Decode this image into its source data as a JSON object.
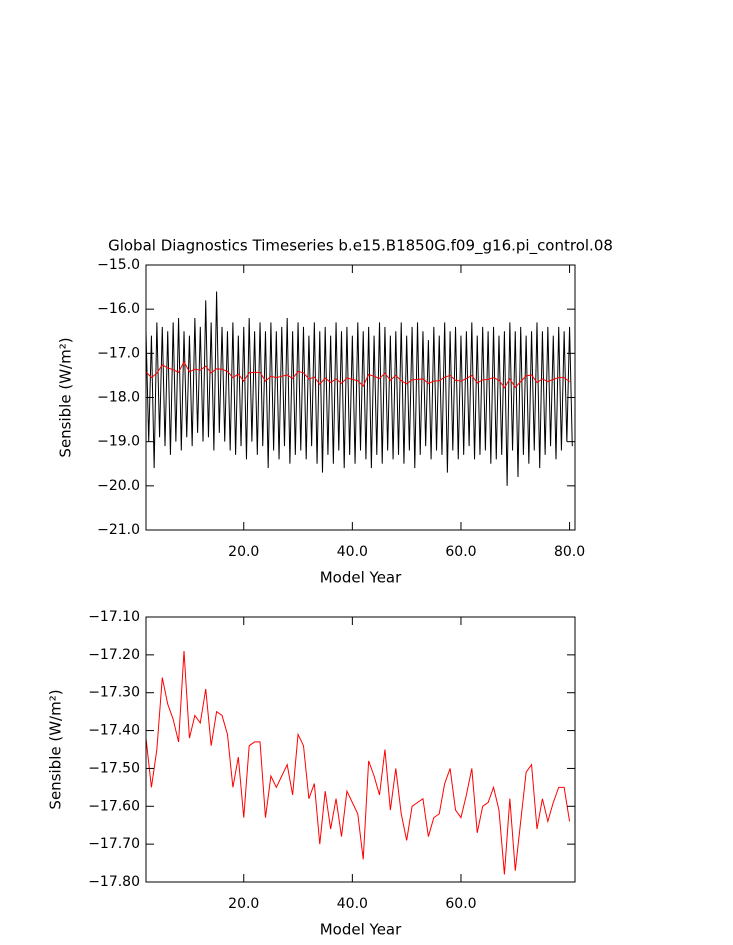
{
  "chart_data": [
    {
      "type": "line",
      "title": "Global Diagnostics Timeseries b.e15.B1850G.f09_g16.pi_control.08",
      "xlabel": "Model Year",
      "ylabel": "Sensible (W/m²)",
      "xlim": [
        2,
        81
      ],
      "ylim": [
        -21,
        -15
      ],
      "xticks": [
        {
          "value": 20,
          "label": "20.0"
        },
        {
          "value": 40,
          "label": "40.0"
        },
        {
          "value": 60,
          "label": "60.0"
        },
        {
          "value": 80,
          "label": "80.0"
        }
      ],
      "yticks": [
        {
          "value": -21,
          "label": "−21.0"
        },
        {
          "value": -20,
          "label": "−20.0"
        },
        {
          "value": -19,
          "label": "−19.0"
        },
        {
          "value": -18,
          "label": "−18.0"
        },
        {
          "value": -17,
          "label": "−17.0"
        },
        {
          "value": -16,
          "label": "−16.0"
        },
        {
          "value": -15,
          "label": "−15.0"
        }
      ],
      "series": [
        {
          "color": "#000000",
          "x": [
            2,
            2.5,
            3,
            3.5,
            4,
            4.5,
            5,
            5.5,
            6,
            6.5,
            7,
            7.5,
            8,
            8.5,
            9,
            9.5,
            10,
            10.5,
            11,
            11.5,
            12,
            12.5,
            13,
            13.5,
            14,
            14.5,
            15,
            15.5,
            16,
            16.5,
            17,
            17.5,
            18,
            18.5,
            19,
            19.5,
            20,
            20.5,
            21,
            21.5,
            22,
            22.5,
            23,
            23.5,
            24,
            24.5,
            25,
            25.5,
            26,
            26.5,
            27,
            27.5,
            28,
            28.5,
            29,
            29.5,
            30,
            30.5,
            31,
            31.5,
            32,
            32.5,
            33,
            33.5,
            34,
            34.5,
            35,
            35.5,
            36,
            36.5,
            37,
            37.5,
            38,
            38.5,
            39,
            39.5,
            40,
            40.5,
            41,
            41.5,
            42,
            42.5,
            43,
            43.5,
            44,
            44.5,
            45,
            45.5,
            46,
            46.5,
            47,
            47.5,
            48,
            48.5,
            49,
            49.5,
            50,
            50.5,
            51,
            51.5,
            52,
            52.5,
            53,
            53.5,
            54,
            54.5,
            55,
            55.5,
            56,
            56.5,
            57,
            57.5,
            58,
            58.5,
            59,
            59.5,
            60,
            60.5,
            61,
            61.5,
            62,
            62.5,
            63,
            63.5,
            64,
            64.5,
            65,
            65.5,
            66,
            66.5,
            67,
            67.5,
            68,
            68.5,
            69,
            69.5,
            70,
            70.5,
            71,
            71.5,
            72,
            72.5,
            73,
            73.5,
            74,
            74.5,
            75,
            75.5,
            76,
            76.5,
            77,
            77.5,
            78,
            78.5,
            79,
            79.5,
            80,
            80.5
          ],
          "values": [
            -16.5,
            -19.0,
            -16.6,
            -19.6,
            -16.3,
            -18.9,
            -16.4,
            -19.1,
            -16.5,
            -19.3,
            -16.3,
            -19.0,
            -16.2,
            -19.2,
            -16.5,
            -18.9,
            -16.6,
            -19.1,
            -16.2,
            -18.8,
            -16.4,
            -19.0,
            -15.8,
            -18.9,
            -16.3,
            -19.2,
            -15.6,
            -18.8,
            -16.4,
            -19.0,
            -16.5,
            -19.2,
            -16.3,
            -19.3,
            -16.6,
            -19.1,
            -16.4,
            -19.4,
            -16.2,
            -19.0,
            -16.5,
            -19.3,
            -16.3,
            -19.1,
            -16.5,
            -19.6,
            -16.3,
            -19.2,
            -16.5,
            -19.4,
            -16.4,
            -19.1,
            -16.2,
            -19.5,
            -16.5,
            -19.3,
            -16.3,
            -19.2,
            -16.4,
            -19.4,
            -16.6,
            -19.1,
            -16.3,
            -19.5,
            -16.5,
            -19.7,
            -16.4,
            -19.3,
            -16.6,
            -19.5,
            -16.3,
            -19.2,
            -16.5,
            -19.6,
            -16.4,
            -19.3,
            -16.6,
            -19.5,
            -16.3,
            -19.2,
            -16.5,
            -19.4,
            -16.4,
            -19.6,
            -16.6,
            -19.3,
            -16.3,
            -19.5,
            -16.4,
            -19.2,
            -16.6,
            -19.4,
            -16.5,
            -19.3,
            -16.3,
            -19.5,
            -16.6,
            -19.2,
            -16.4,
            -19.6,
            -16.3,
            -19.3,
            -16.5,
            -19.1,
            -16.7,
            -19.4,
            -16.4,
            -19.2,
            -16.6,
            -19.3,
            -16.3,
            -19.7,
            -16.5,
            -19.2,
            -16.4,
            -19.4,
            -16.6,
            -19.3,
            -16.5,
            -19.1,
            -16.3,
            -19.4,
            -16.6,
            -19.3,
            -16.4,
            -19.2,
            -16.5,
            -19.5,
            -16.4,
            -19.4,
            -16.6,
            -19.3,
            -16.5,
            -20.0,
            -16.3,
            -19.2,
            -16.5,
            -19.8,
            -16.4,
            -19.3,
            -16.6,
            -19.5,
            -16.5,
            -19.2,
            -16.3,
            -19.6,
            -16.5,
            -19.3,
            -16.4,
            -19.1,
            -16.6,
            -19.4,
            -16.4,
            -19.2,
            -16.5,
            -19.0,
            -16.4,
            -19.1
          ]
        },
        {
          "color": "#ff0000",
          "x": [
            2,
            3,
            4,
            5,
            6,
            7,
            8,
            9,
            10,
            11,
            12,
            13,
            14,
            15,
            16,
            17,
            18,
            19,
            20,
            21,
            22,
            23,
            24,
            25,
            26,
            27,
            28,
            29,
            30,
            31,
            32,
            33,
            34,
            35,
            36,
            37,
            38,
            39,
            40,
            41,
            42,
            43,
            44,
            45,
            46,
            47,
            48,
            49,
            50,
            51,
            52,
            53,
            54,
            55,
            56,
            57,
            58,
            59,
            60,
            61,
            62,
            63,
            64,
            65,
            66,
            67,
            68,
            69,
            70,
            71,
            72,
            73,
            74,
            75,
            76,
            77,
            78,
            79,
            80
          ],
          "values": [
            -17.42,
            -17.55,
            -17.45,
            -17.26,
            -17.33,
            -17.37,
            -17.43,
            -17.19,
            -17.42,
            -17.36,
            -17.38,
            -17.29,
            -17.44,
            -17.35,
            -17.36,
            -17.41,
            -17.55,
            -17.47,
            -17.63,
            -17.44,
            -17.43,
            -17.43,
            -17.63,
            -17.52,
            -17.55,
            -17.52,
            -17.49,
            -17.57,
            -17.41,
            -17.44,
            -17.58,
            -17.54,
            -17.7,
            -17.56,
            -17.66,
            -17.58,
            -17.68,
            -17.56,
            -17.59,
            -17.62,
            -17.74,
            -17.48,
            -17.52,
            -17.57,
            -17.45,
            -17.61,
            -17.5,
            -17.62,
            -17.69,
            -17.6,
            -17.59,
            -17.58,
            -17.68,
            -17.63,
            -17.62,
            -17.54,
            -17.5,
            -17.61,
            -17.63,
            -17.57,
            -17.5,
            -17.67,
            -17.6,
            -17.59,
            -17.55,
            -17.61,
            -17.78,
            -17.58,
            -17.77,
            -17.64,
            -17.51,
            -17.49,
            -17.66,
            -17.58,
            -17.64,
            -17.59,
            -17.55,
            -17.55,
            -17.64
          ]
        }
      ]
    },
    {
      "type": "line",
      "xlabel": "Model Year",
      "ylabel": "Sensible (W/m²)",
      "xlim": [
        2,
        81
      ],
      "ylim": [
        -17.8,
        -17.1
      ],
      "xticks": [
        {
          "value": 20,
          "label": "20.0"
        },
        {
          "value": 40,
          "label": "40.0"
        },
        {
          "value": 60,
          "label": "60.0"
        }
      ],
      "yticks": [
        {
          "value": -17.8,
          "label": "−17.80"
        },
        {
          "value": -17.7,
          "label": "−17.70"
        },
        {
          "value": -17.6,
          "label": "−17.60"
        },
        {
          "value": -17.5,
          "label": "−17.50"
        },
        {
          "value": -17.4,
          "label": "−17.40"
        },
        {
          "value": -17.3,
          "label": "−17.30"
        },
        {
          "value": -17.2,
          "label": "−17.20"
        },
        {
          "value": -17.1,
          "label": "−17.10"
        }
      ],
      "series": [
        {
          "color": "#ff0000",
          "x": [
            2,
            3,
            4,
            5,
            6,
            7,
            8,
            9,
            10,
            11,
            12,
            13,
            14,
            15,
            16,
            17,
            18,
            19,
            20,
            21,
            22,
            23,
            24,
            25,
            26,
            27,
            28,
            29,
            30,
            31,
            32,
            33,
            34,
            35,
            36,
            37,
            38,
            39,
            40,
            41,
            42,
            43,
            44,
            45,
            46,
            47,
            48,
            49,
            50,
            51,
            52,
            53,
            54,
            55,
            56,
            57,
            58,
            59,
            60,
            61,
            62,
            63,
            64,
            65,
            66,
            67,
            68,
            69,
            70,
            71,
            72,
            73,
            74,
            75,
            76,
            77,
            78,
            79,
            80
          ],
          "values": [
            -17.42,
            -17.55,
            -17.45,
            -17.26,
            -17.33,
            -17.37,
            -17.43,
            -17.19,
            -17.42,
            -17.36,
            -17.38,
            -17.29,
            -17.44,
            -17.35,
            -17.36,
            -17.41,
            -17.55,
            -17.47,
            -17.63,
            -17.44,
            -17.43,
            -17.43,
            -17.63,
            -17.52,
            -17.55,
            -17.52,
            -17.49,
            -17.57,
            -17.41,
            -17.44,
            -17.58,
            -17.54,
            -17.7,
            -17.56,
            -17.66,
            -17.58,
            -17.68,
            -17.56,
            -17.59,
            -17.62,
            -17.74,
            -17.48,
            -17.52,
            -17.57,
            -17.45,
            -17.61,
            -17.5,
            -17.62,
            -17.69,
            -17.6,
            -17.59,
            -17.58,
            -17.68,
            -17.63,
            -17.62,
            -17.54,
            -17.5,
            -17.61,
            -17.63,
            -17.57,
            -17.5,
            -17.67,
            -17.6,
            -17.59,
            -17.55,
            -17.61,
            -17.78,
            -17.58,
            -17.77,
            -17.64,
            -17.51,
            -17.49,
            -17.66,
            -17.58,
            -17.64,
            -17.59,
            -17.55,
            -17.55,
            -17.64
          ]
        }
      ]
    }
  ]
}
